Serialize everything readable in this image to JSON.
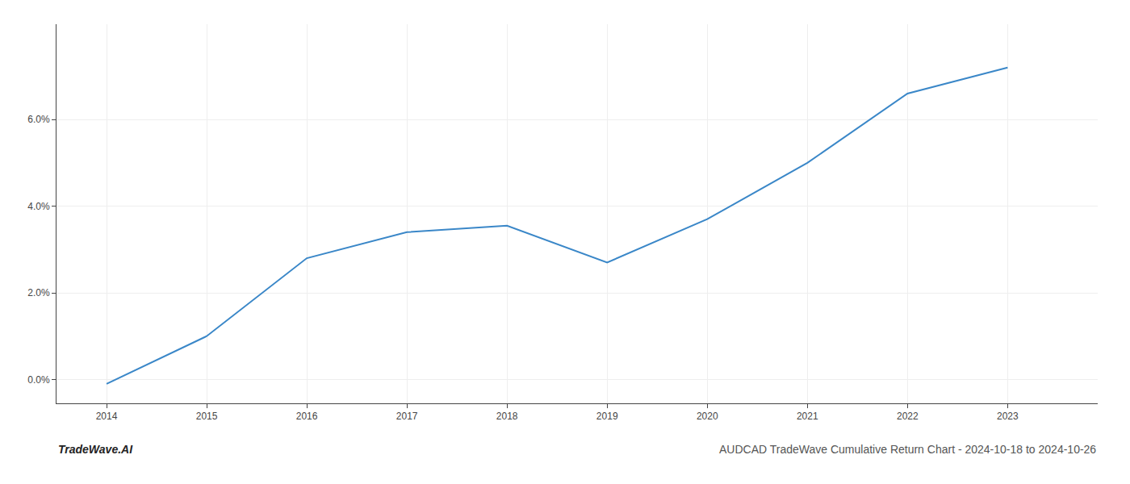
{
  "chart_data": {
    "type": "line",
    "title": "AUDCAD TradeWave Cumulative Return Chart - 2024-10-18 to 2024-10-26",
    "annotations": [
      "TradeWave.AI"
    ],
    "x": [
      2014,
      2015,
      2016,
      2017,
      2018,
      2019,
      2020,
      2021,
      2022,
      2023
    ],
    "values": [
      -0.1,
      1.0,
      2.8,
      3.4,
      3.55,
      2.7,
      3.7,
      5.0,
      6.6,
      7.2
    ],
    "color": "#3a87c8",
    "xlim": [
      2013.5,
      2023.9
    ],
    "xticks": [
      2014,
      2015,
      2016,
      2017,
      2018,
      2019,
      2020,
      2021,
      2022,
      2023
    ],
    "ylim": [
      -0.55,
      8.2
    ],
    "yticks": [
      {
        "value": 0.0,
        "label": "0.0%"
      },
      {
        "value": 2.0,
        "label": "2.0%"
      },
      {
        "value": 4.0,
        "label": "4.0%"
      },
      {
        "value": 6.0,
        "label": "6.0%"
      }
    ],
    "grid": true
  }
}
